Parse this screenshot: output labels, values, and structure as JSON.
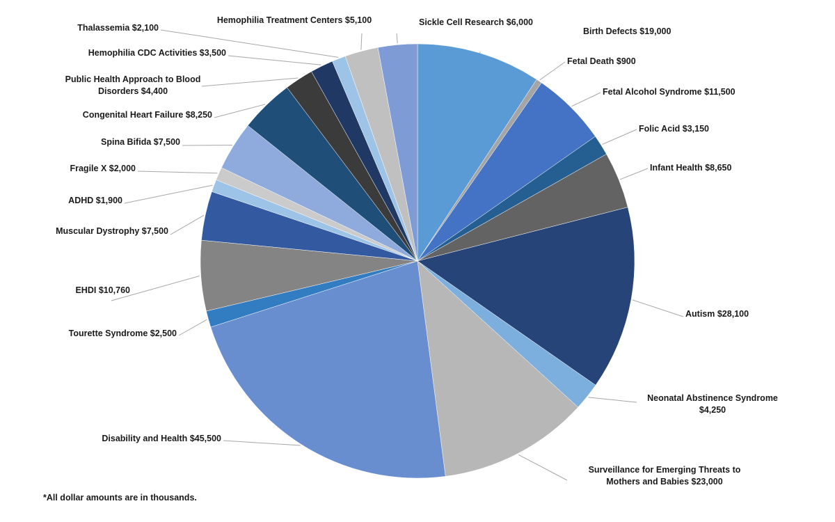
{
  "chart_data": {
    "type": "pie",
    "categories": [
      "Birth Defects",
      "Fetal Death",
      "Fetal Alcohol Syndrome",
      "Folic Acid",
      "Infant Health",
      "Autism",
      "Neonatal Abstinence Syndrome",
      "Surveillance for Emerging Threats to Mothers and Babies",
      "Disability and Health",
      "Tourette Syndrome",
      "EHDI",
      "Muscular Dystrophy",
      "ADHD",
      "Fragile X",
      "Spina Bifida",
      "Congenital Heart Failure",
      "Public Health Approach to Blood Disorders",
      "Hemophilia CDC Activities",
      "Thalassemia",
      "Hemophilia Treatment Centers",
      "Sickle Cell Research"
    ],
    "values": [
      19000,
      900,
      11500,
      3150,
      8650,
      28100,
      4250,
      23000,
      45500,
      2500,
      10760,
      7500,
      1900,
      2000,
      7500,
      8250,
      4400,
      3500,
      2100,
      5100,
      6000
    ],
    "value_labels": [
      "$19,000",
      "$900",
      "$11,500",
      "$3,150",
      "$8,650",
      "$28,100",
      "$4,250",
      "$23,000",
      "$45,500",
      "$2,500",
      "$10,760",
      "$7,500",
      "$1,900",
      "$2,000",
      "$7,500",
      "$8,250",
      "$4,400",
      "$3,500",
      "$2,100",
      "$5,100",
      "$6,000"
    ],
    "colors": [
      "#5b9bd5",
      "#a5a5a5",
      "#4472c4",
      "#255e91",
      "#636363",
      "#264478",
      "#7cafdd",
      "#b7b7b7",
      "#698ed0",
      "#327dc2",
      "#848484",
      "#335aa1",
      "#9dc3e6",
      "#cbcbcb",
      "#8faadc",
      "#1f4e79",
      "#3b3b3b",
      "#203864",
      "#9dc3e6",
      "#c0c0c0",
      "#7f9bd6"
    ],
    "footnote": "*All dollar amounts are in thousands."
  }
}
